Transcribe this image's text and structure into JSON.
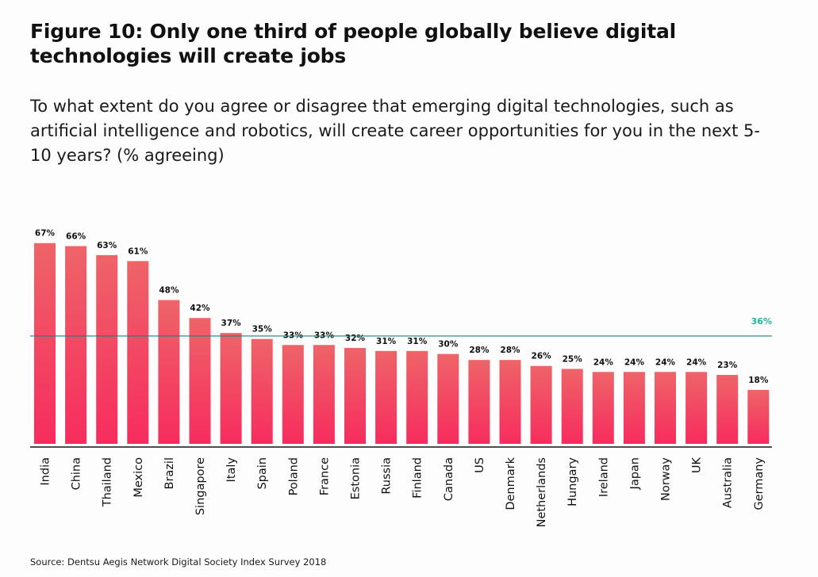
{
  "title": "Figure 10: Only one third of people globally believe digital technologies will create jobs",
  "subtitle": "To what extent do you agree or disagree that emerging digital technologies, such as artificial intelligence and robotics, will create career opportunities for you in the next 5-10 years? (% agreeing)",
  "source": "Source: Dentsu Aegis Network Digital Society Index Survey 2018",
  "colors": {
    "bar_top": "#ee6468",
    "bar_bottom": "#f72c5e",
    "average_line": "#1a7f86",
    "average_label": "#1fb59a",
    "axis": "#111111"
  },
  "chart_data": {
    "type": "bar",
    "title": "Figure 10: Only one third of people globally believe digital technologies will create jobs",
    "xlabel": "",
    "ylabel": "% agreeing",
    "ylim": [
      0,
      70
    ],
    "grid": false,
    "categories": [
      "India",
      "China",
      "Thailand",
      "Mexico",
      "Brazil",
      "Singapore",
      "Italy",
      "Spain",
      "Poland",
      "France",
      "Estonia",
      "Russia",
      "Finland",
      "Canada",
      "US",
      "Denmark",
      "Netherlands",
      "Hungary",
      "Ireland",
      "Japan",
      "Norway",
      "UK",
      "Australia",
      "Germany"
    ],
    "values": [
      67,
      66,
      63,
      61,
      48,
      42,
      37,
      35,
      33,
      33,
      32,
      31,
      31,
      30,
      28,
      28,
      26,
      25,
      24,
      24,
      24,
      24,
      23,
      18
    ],
    "value_labels": [
      "67%",
      "66%",
      "63%",
      "61%",
      "48%",
      "42%",
      "37%",
      "35%",
      "33%",
      "33%",
      "32%",
      "31%",
      "31%",
      "30%",
      "28%",
      "28%",
      "26%",
      "25%",
      "24%",
      "24%",
      "24%",
      "24%",
      "23%",
      "18%"
    ],
    "reference_line": {
      "value": 36,
      "label": "36%"
    }
  }
}
